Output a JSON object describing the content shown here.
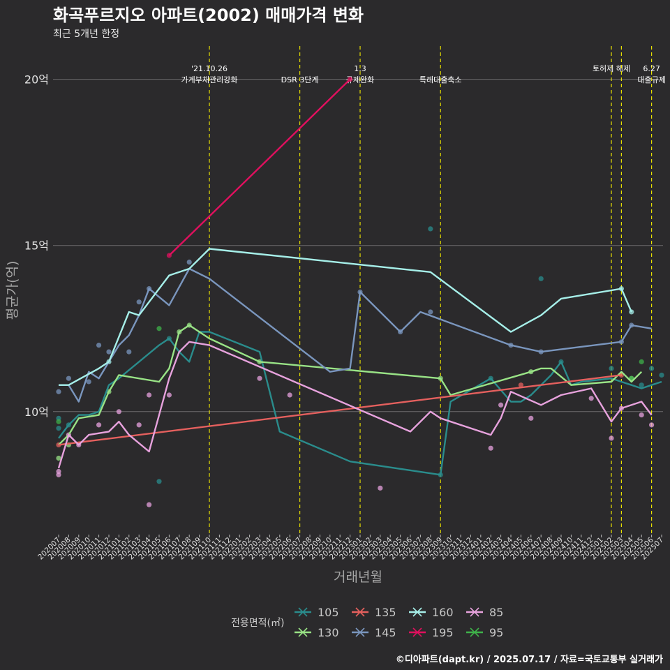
{
  "title": "화곡푸르지오 아파트(2002) 매매가격 변화",
  "subtitle": "최근 5개년 한정",
  "caption": "©디아파트(dapt.kr) / 2025.07.17 / 자료=국토교통부 실거래가",
  "chart_data": {
    "type": "line",
    "xlabel": "거래년월",
    "ylabel": "평균가(억)",
    "ylim": [
      6.3,
      21.0
    ],
    "yticks": [
      10,
      15,
      20
    ],
    "ytick_suffix": "억",
    "grid": "horizontal",
    "legend_title": "전용면적(㎡)",
    "legend_position": "bottom",
    "months": [
      "202007",
      "202008",
      "202009",
      "202010",
      "202011",
      "202012",
      "202101",
      "202102",
      "202103",
      "202104",
      "202105",
      "202106",
      "202107",
      "202108",
      "202109",
      "202110",
      "202111",
      "202112",
      "202201",
      "202202",
      "202203",
      "202204",
      "202205",
      "202206",
      "202207",
      "202208",
      "202209",
      "202210",
      "202211",
      "202212",
      "202301",
      "202302",
      "202303",
      "202304",
      "202305",
      "202306",
      "202307",
      "202308",
      "202309",
      "202310",
      "202311",
      "202312",
      "202401",
      "202402",
      "202403",
      "202404",
      "202405",
      "202406",
      "202407",
      "202408",
      "202409",
      "202410",
      "202411",
      "202412",
      "202501",
      "202502",
      "202503",
      "202504",
      "202505",
      "202506",
      "202507"
    ],
    "events": [
      {
        "month": "202110",
        "label": "'21.10.26\n가계부채관리강화"
      },
      {
        "month": "202207",
        "label": "DSR 3단계"
      },
      {
        "month": "202301",
        "label": "1.3\n규제완화"
      },
      {
        "month": "202309",
        "label": "특례대출축소"
      },
      {
        "month": "202502",
        "label": "토허제 해제"
      },
      {
        "month": "202503",
        "label": ""
      },
      {
        "month": "202506",
        "label": "6.27\n대출규제"
      }
    ],
    "series": [
      {
        "name": "105",
        "color": "#2a8c8c",
        "line": [
          [
            "202007",
            9.2
          ],
          [
            "202008",
            9.6
          ],
          [
            "202009",
            9.9
          ],
          [
            "202010",
            9.9
          ],
          [
            "202011",
            10.0
          ],
          [
            "202012",
            10.8
          ],
          [
            "202101",
            11.0
          ],
          [
            "202105",
            12.0
          ],
          [
            "202106",
            12.2
          ],
          [
            "202107",
            11.8
          ],
          [
            "202108",
            11.5
          ],
          [
            "202109",
            12.4
          ],
          [
            "202110",
            12.4
          ],
          [
            "202203",
            11.8
          ],
          [
            "202205",
            9.4
          ],
          [
            "202212",
            8.5
          ],
          [
            "202309",
            8.1
          ],
          [
            "202310",
            10.3
          ],
          [
            "202402",
            11.0
          ],
          [
            "202404",
            10.3
          ],
          [
            "202405",
            10.3
          ],
          [
            "202406",
            10.5
          ],
          [
            "202407",
            10.8
          ],
          [
            "202408",
            11.1
          ],
          [
            "202409",
            11.5
          ],
          [
            "202410",
            10.8
          ],
          [
            "202411",
            10.9
          ],
          [
            "202502",
            11.0
          ],
          [
            "202503",
            10.9
          ],
          [
            "202504",
            10.8
          ],
          [
            "202505",
            10.7
          ],
          [
            "202506",
            10.8
          ],
          [
            "202507",
            10.9
          ]
        ],
        "points": [
          [
            "202007",
            9.5
          ],
          [
            "202007",
            9.8
          ],
          [
            "202008",
            9.6
          ],
          [
            "202105",
            7.9
          ],
          [
            "202106",
            12.2
          ],
          [
            "202308",
            15.5
          ],
          [
            "202309",
            8.1
          ],
          [
            "202402",
            11.0
          ],
          [
            "202407",
            14.0
          ],
          [
            "202409",
            11.5
          ],
          [
            "202502",
            11.3
          ],
          [
            "202505",
            10.8
          ],
          [
            "202506",
            11.3
          ],
          [
            "202507",
            11.1
          ]
        ]
      },
      {
        "name": "130",
        "color": "#99e386",
        "line": [
          [
            "202007",
            9.0
          ],
          [
            "202008",
            9.3
          ],
          [
            "202009",
            9.8
          ],
          [
            "202011",
            9.9
          ],
          [
            "202012",
            10.6
          ],
          [
            "202101",
            11.1
          ],
          [
            "202105",
            10.9
          ],
          [
            "202106",
            11.3
          ],
          [
            "202107",
            12.4
          ],
          [
            "202108",
            12.6
          ],
          [
            "202110",
            12.2
          ],
          [
            "202203",
            11.5
          ],
          [
            "202309",
            11.0
          ],
          [
            "202310",
            10.5
          ],
          [
            "202406",
            11.2
          ],
          [
            "202407",
            11.3
          ],
          [
            "202408",
            11.3
          ],
          [
            "202410",
            10.8
          ],
          [
            "202502",
            10.9
          ],
          [
            "202503",
            11.2
          ],
          [
            "202504",
            10.9
          ],
          [
            "202505",
            11.2
          ]
        ],
        "points": [
          [
            "202007",
            8.6
          ],
          [
            "202008",
            9.0
          ],
          [
            "202012",
            10.6
          ],
          [
            "202107",
            12.4
          ],
          [
            "202108",
            12.6
          ],
          [
            "202203",
            11.5
          ],
          [
            "202309",
            11.0
          ],
          [
            "202406",
            11.2
          ],
          [
            "202504",
            11.0
          ]
        ]
      },
      {
        "name": "135",
        "color": "#e5605e",
        "line": [
          [
            "202007",
            9.0
          ],
          [
            "202503",
            11.1
          ]
        ],
        "points": [
          [
            "202007",
            9.0
          ],
          [
            "202405",
            10.8
          ],
          [
            "202503",
            11.1
          ]
        ]
      },
      {
        "name": "145",
        "color": "#7a96be",
        "line": [
          [
            "202007",
            10.8
          ],
          [
            "202008",
            10.8
          ],
          [
            "202009",
            10.3
          ],
          [
            "202010",
            11.2
          ],
          [
            "202011",
            11.0
          ],
          [
            "202012",
            11.5
          ],
          [
            "202101",
            12.0
          ],
          [
            "202102",
            12.3
          ],
          [
            "202103",
            12.9
          ],
          [
            "202104",
            13.7
          ],
          [
            "202106",
            13.2
          ],
          [
            "202108",
            14.3
          ],
          [
            "202110",
            14.0
          ],
          [
            "202210",
            11.2
          ],
          [
            "202212",
            11.3
          ],
          [
            "202301",
            13.6
          ],
          [
            "202305",
            12.4
          ],
          [
            "202307",
            13.0
          ],
          [
            "202404",
            12.0
          ],
          [
            "202407",
            11.8
          ],
          [
            "202503",
            12.1
          ],
          [
            "202504",
            12.6
          ],
          [
            "202506",
            12.5
          ]
        ],
        "points": [
          [
            "202007",
            10.6
          ],
          [
            "202008",
            11.0
          ],
          [
            "202010",
            10.9
          ],
          [
            "202011",
            12.0
          ],
          [
            "202012",
            11.8
          ],
          [
            "202102",
            11.8
          ],
          [
            "202103",
            13.3
          ],
          [
            "202104",
            13.7
          ],
          [
            "202108",
            14.5
          ],
          [
            "202301",
            13.6
          ],
          [
            "202305",
            12.4
          ],
          [
            "202308",
            13.0
          ],
          [
            "202404",
            12.0
          ],
          [
            "202407",
            11.8
          ],
          [
            "202503",
            12.1
          ],
          [
            "202504",
            12.6
          ]
        ]
      },
      {
        "name": "160",
        "color": "#a6efe9",
        "line": [
          [
            "202007",
            10.8
          ],
          [
            "202008",
            10.8
          ],
          [
            "202011",
            11.3
          ],
          [
            "202012",
            11.5
          ],
          [
            "202102",
            13.0
          ],
          [
            "202103",
            12.9
          ],
          [
            "202106",
            14.1
          ],
          [
            "202108",
            14.3
          ],
          [
            "202110",
            14.9
          ],
          [
            "202308",
            14.2
          ],
          [
            "202404",
            12.4
          ],
          [
            "202407",
            12.9
          ],
          [
            "202409",
            13.4
          ],
          [
            "202503",
            13.7
          ],
          [
            "202504",
            13.0
          ]
        ],
        "points": [
          [
            "202012",
            11.5
          ],
          [
            "202503",
            13.7
          ],
          [
            "202504",
            13.0
          ]
        ]
      },
      {
        "name": "195",
        "color": "#e0105e",
        "line": [
          [
            "202106",
            14.7
          ],
          [
            "202212",
            20.0
          ]
        ],
        "points": [
          [
            "202106",
            14.7
          ],
          [
            "202212",
            20.0
          ]
        ]
      },
      {
        "name": "85",
        "color": "#e7a2dd",
        "line": [
          [
            "202007",
            8.3
          ],
          [
            "202008",
            9.3
          ],
          [
            "202009",
            9.0
          ],
          [
            "202010",
            9.3
          ],
          [
            "202012",
            9.4
          ],
          [
            "202101",
            9.7
          ],
          [
            "202102",
            9.3
          ],
          [
            "202104",
            8.8
          ],
          [
            "202106",
            11.0
          ],
          [
            "202107",
            11.8
          ],
          [
            "202108",
            12.1
          ],
          [
            "202110",
            12.0
          ],
          [
            "202306",
            9.4
          ],
          [
            "202308",
            10.0
          ],
          [
            "202309",
            9.8
          ],
          [
            "202402",
            9.3
          ],
          [
            "202403",
            9.8
          ],
          [
            "202404",
            10.6
          ],
          [
            "202407",
            10.2
          ],
          [
            "202409",
            10.5
          ],
          [
            "202412",
            10.7
          ],
          [
            "202502",
            9.7
          ],
          [
            "202503",
            10.1
          ],
          [
            "202505",
            10.3
          ],
          [
            "202506",
            9.9
          ]
        ],
        "points": [
          [
            "202007",
            8.1
          ],
          [
            "202007",
            8.2
          ],
          [
            "202008",
            9.3
          ],
          [
            "202009",
            9.0
          ],
          [
            "202011",
            9.6
          ],
          [
            "202101",
            10.0
          ],
          [
            "202103",
            9.6
          ],
          [
            "202104",
            7.2
          ],
          [
            "202104",
            10.5
          ],
          [
            "202106",
            10.5
          ],
          [
            "202203",
            11.0
          ],
          [
            "202206",
            10.5
          ],
          [
            "202303",
            7.7
          ],
          [
            "202402",
            8.9
          ],
          [
            "202403",
            10.2
          ],
          [
            "202406",
            9.8
          ],
          [
            "202412",
            10.4
          ],
          [
            "202502",
            9.2
          ],
          [
            "202503",
            10.1
          ],
          [
            "202505",
            9.9
          ],
          [
            "202506",
            9.6
          ]
        ]
      },
      {
        "name": "95",
        "color": "#3fb24a",
        "line": [],
        "points": [
          [
            "202007",
            9.7
          ],
          [
            "202105",
            12.5
          ],
          [
            "202505",
            11.5
          ],
          [
            "202504",
            11.0
          ]
        ]
      }
    ]
  }
}
